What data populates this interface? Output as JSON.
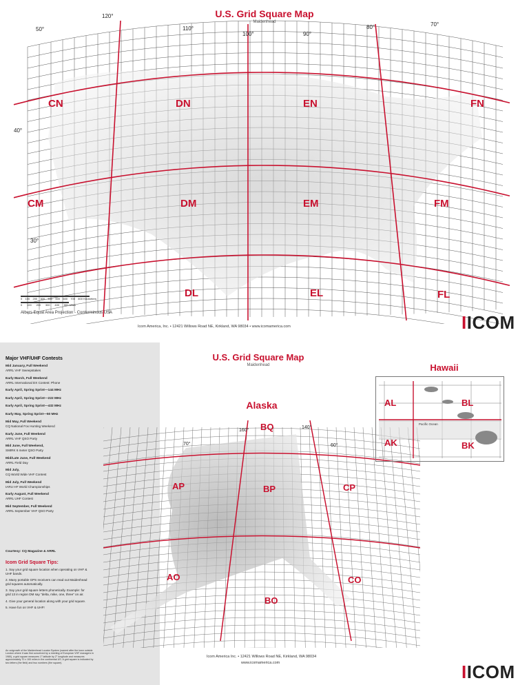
{
  "us_map": {
    "title": "U.S. Grid Square Map",
    "subtitle": "Maidenhead",
    "projection": "Albers Equal Area Projection - Conterminous USA",
    "address": "Icom America, Inc. • 12421 Willows Road NE, Kirkland, WA 98034 • www.icomamerica.com",
    "scale_km": [
      "0",
      "100",
      "200",
      "300",
      "400",
      "500",
      "600",
      "700",
      "800 Kilometers"
    ],
    "scale_mi": [
      "0",
      "100",
      "200",
      "300",
      "400",
      "500 Miles"
    ],
    "longitudes": [
      "120°",
      "110°",
      "100°",
      "90°",
      "80°",
      "70°"
    ],
    "latitudes": [
      "50°",
      "40°",
      "30°"
    ],
    "fields": [
      "CN",
      "DN",
      "EN",
      "FN",
      "CM",
      "DM",
      "EM",
      "FM",
      "DL",
      "EL",
      "FL"
    ],
    "accent": "#c8102e"
  },
  "alaska_hawaii": {
    "title": "U.S. Grid Square Map",
    "subtitle": "Maidenhead",
    "alaska_label": "Alaska",
    "hawaii_label": "Hawaii",
    "alaska_fields": [
      "BQ",
      "AP",
      "BP",
      "CP",
      "AO",
      "BO",
      "CO"
    ],
    "alaska_longitudes": [
      "160°",
      "140°",
      "70°",
      "60°"
    ],
    "hawaii_fields": [
      "AL",
      "BL",
      "AK",
      "BK"
    ],
    "hawaii_ocean": "Pacific Ocean",
    "address": "Icom America Inc. • 12421 Willows Road NE, Kirkland, WA 98034",
    "web": "www.icomamerica.com"
  },
  "logo": {
    "brand": "ICOM"
  },
  "sidebar": {
    "heading": "Major VHF/UHF Contests",
    "contests": [
      {
        "when": "Mid January, Full Weekend",
        "name": "ARRL VHF Sweepstakes"
      },
      {
        "when": "Early March, Full Weekend",
        "name": "ARRL International DX Contest: Phone"
      },
      {
        "when": "Early April, Spring Sprint—144 MHz",
        "name": ""
      },
      {
        "when": "Early April, Spring Sprint—222 MHz",
        "name": ""
      },
      {
        "when": "Early April, Spring Sprint—432 MHz",
        "name": ""
      },
      {
        "when": "Early May, Spring Sprint—50 MHz",
        "name": ""
      },
      {
        "when": "Mid May, Full Weekend",
        "name": "CQ National Fox Hunting Weekend"
      },
      {
        "when": "Early June, Full Weekend",
        "name": "ARRL VHF QSO Party"
      },
      {
        "when": "Mid June, Full Weekend,",
        "name": "SMIRK 6 meter QSO Party"
      },
      {
        "when": "Mid/Late June, Full Weekend",
        "name": "ARRL Field Day"
      },
      {
        "when": "Mid July,",
        "name": "CQ World Wide VHF Contest"
      },
      {
        "when": "Mid July, Full Weekend",
        "name": "IARU HF World Championships"
      },
      {
        "when": "Early August, Full Weekend",
        "name": "ARRL UHF Contest"
      },
      {
        "when": "Mid September, Full Weekend",
        "name": "ARRL September VHF QSO Party"
      }
    ],
    "courtesy": "Courtesy: CQ Magazine & ARRL",
    "tips_heading": "Icom Grid Square Tips:",
    "tips": [
      "1. Say your grid square location when operating on VHF & UHF bands.",
      "2. Many portable GPS receivers can read out Maidenhead grid squares automatically.",
      "3. Say your grid square letters phonetically. Example: for grid 13 in region DM say \"delta, mike, one, three\" on air.",
      "4. Give your general location along with your grid square.",
      "5. Have fun on VHF & UHF!"
    ],
    "footnote": "An outgrowth of the Maidenhead Locator System (named after the town outside London where it was first conceived by a meeting of European VHF managers in 1980), a grid square measures 1° latitude by 2° longitude and measures approximately 70 x 100 miles in the continental US. A grid square is indicated by two letters (the field) and two numbers (the square)."
  }
}
